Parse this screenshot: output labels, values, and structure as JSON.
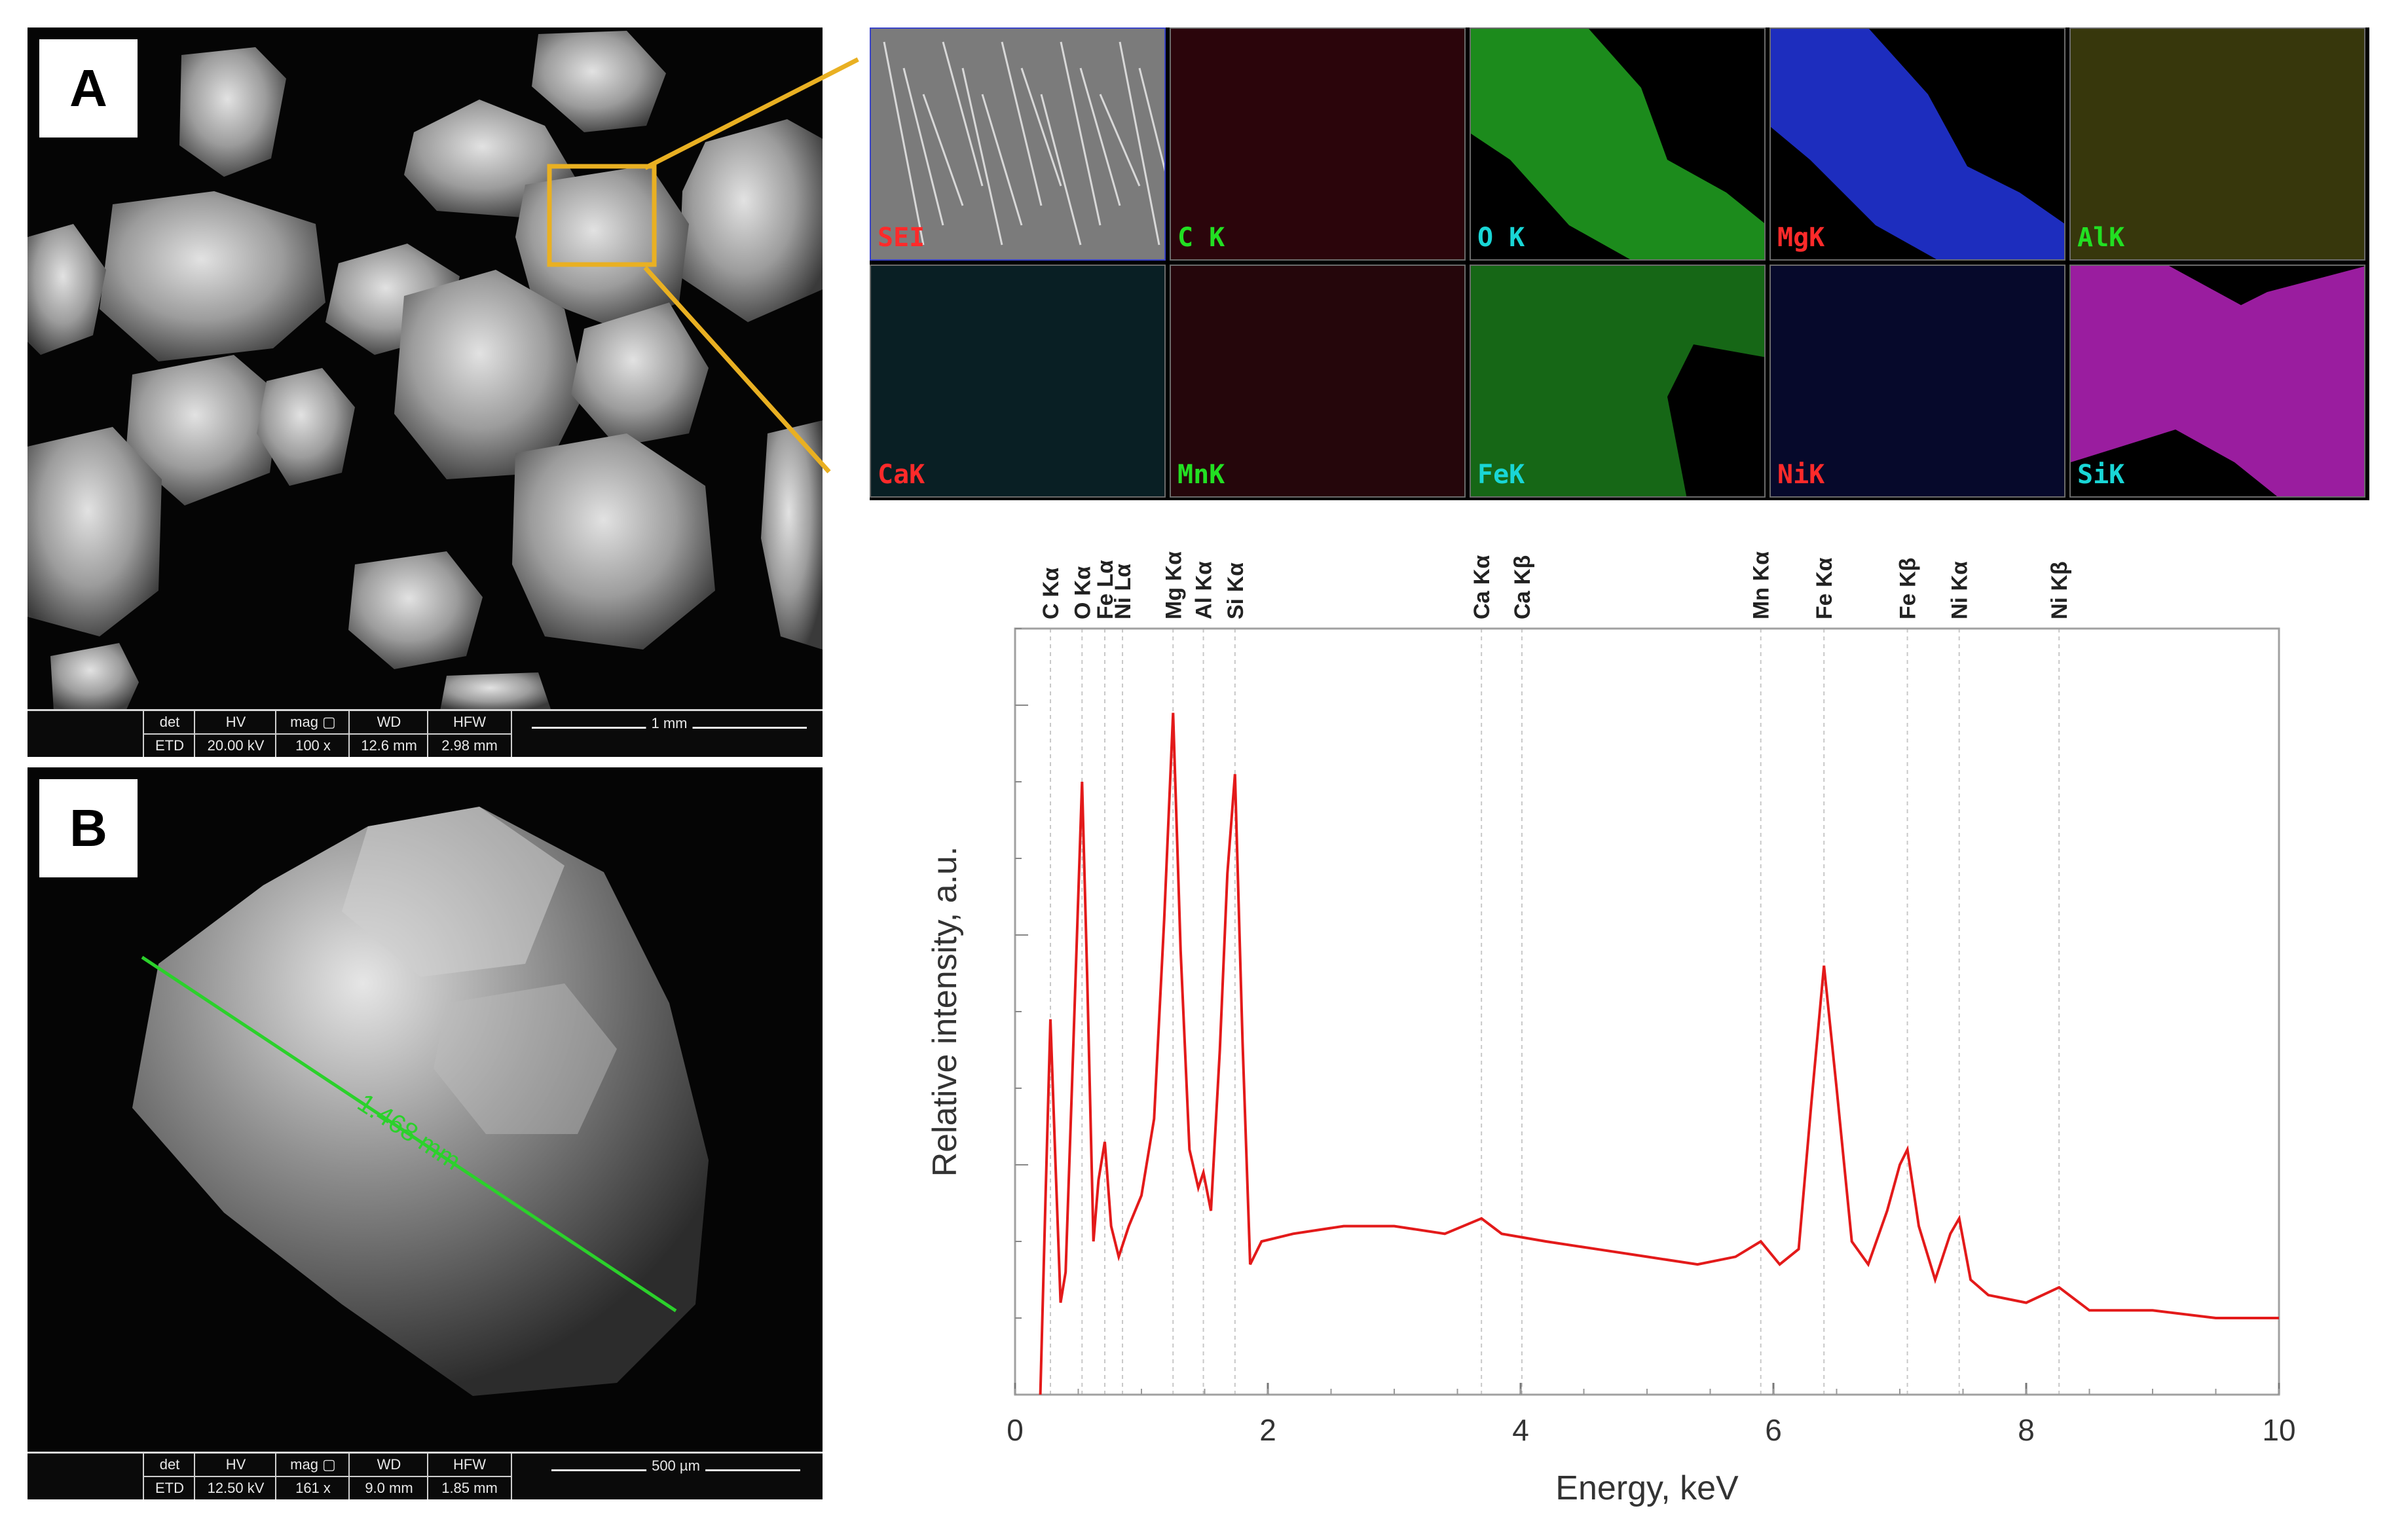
{
  "panels": {
    "a": {
      "letter": "A",
      "info_headers": [
        "det",
        "HV",
        "mag ▢",
        "WD",
        "HFW"
      ],
      "info_values": [
        "ETD",
        "20.00 kV",
        "100 x",
        "12.6 mm",
        "2.98 mm"
      ],
      "scale_label": "1 mm"
    },
    "b": {
      "letter": "B",
      "measurement": "1.468 mm",
      "info_headers": [
        "det",
        "HV",
        "mag ▢",
        "WD",
        "HFW"
      ],
      "info_values": [
        "ETD",
        "12.50 kV",
        "161 x",
        "9.0 mm",
        "1.85 mm"
      ],
      "scale_label": "500 µm"
    }
  },
  "eds_maps": [
    {
      "label": "SEI",
      "label_color": "#ff2a2a",
      "fill": "#888888"
    },
    {
      "label": "C  K",
      "label_color": "#22e022",
      "fill": "#7a0f1f"
    },
    {
      "label": "O  K",
      "label_color": "#19d6d6",
      "fill": "#1f9a1f"
    },
    {
      "label": "MgK",
      "label_color": "#ff2a2a",
      "fill": "#1f2fc8"
    },
    {
      "label": "AlK",
      "label_color": "#22e022",
      "fill": "#7a7a1a"
    },
    {
      "label": "CaK",
      "label_color": "#ff2a2a",
      "fill": "#1a5a66"
    },
    {
      "label": "MnK",
      "label_color": "#22e022",
      "fill": "#6a1020"
    },
    {
      "label": "FeK",
      "label_color": "#19d6d6",
      "fill": "#1e8a1e"
    },
    {
      "label": "NiK",
      "label_color": "#ff2a2a",
      "fill": "#101a7a"
    },
    {
      "label": "SiK",
      "label_color": "#19d6d6",
      "fill": "#a21fa8"
    }
  ],
  "chart_data": {
    "type": "line",
    "xlabel": "Energy, keV",
    "ylabel": "Relative intensity, a.u.",
    "xlim": [
      0,
      10
    ],
    "ylim": [
      0,
      100
    ],
    "xticks": [
      0,
      2,
      4,
      6,
      8,
      10
    ],
    "line_color": "#e31a1a",
    "peak_labels": [
      {
        "text": "C Kα",
        "x": 0.28
      },
      {
        "text": "O Kα",
        "x": 0.53
      },
      {
        "text": "Fe Lα",
        "x": 0.71
      },
      {
        "text": "Ni Lα",
        "x": 0.85
      },
      {
        "text": "Mg Kα",
        "x": 1.25
      },
      {
        "text": "Al Kα",
        "x": 1.49
      },
      {
        "text": "Si Kα",
        "x": 1.74
      },
      {
        "text": "Ca Kα",
        "x": 3.69
      },
      {
        "text": "Ca Kβ",
        "x": 4.01
      },
      {
        "text": "Mn Kα",
        "x": 5.9
      },
      {
        "text": "Fe Kα",
        "x": 6.4
      },
      {
        "text": "Fe Kβ",
        "x": 7.06
      },
      {
        "text": "Ni Kα",
        "x": 7.47
      },
      {
        "text": "Ni Kβ",
        "x": 8.26
      }
    ],
    "x": [
      0.2,
      0.24,
      0.28,
      0.32,
      0.36,
      0.4,
      0.45,
      0.5,
      0.53,
      0.57,
      0.62,
      0.66,
      0.71,
      0.76,
      0.82,
      0.9,
      1.0,
      1.1,
      1.18,
      1.25,
      1.31,
      1.38,
      1.45,
      1.49,
      1.55,
      1.62,
      1.68,
      1.74,
      1.8,
      1.86,
      1.95,
      2.2,
      2.6,
      3.0,
      3.4,
      3.69,
      3.85,
      4.2,
      4.6,
      5.0,
      5.4,
      5.7,
      5.9,
      6.05,
      6.2,
      6.3,
      6.4,
      6.5,
      6.62,
      6.75,
      6.9,
      7.0,
      7.06,
      7.15,
      7.28,
      7.4,
      7.47,
      7.56,
      7.7,
      8.0,
      8.26,
      8.5,
      9.0,
      9.5,
      10.0
    ],
    "y": [
      0,
      25,
      49,
      30,
      12,
      16,
      40,
      65,
      80,
      55,
      20,
      28,
      33,
      22,
      18,
      22,
      26,
      36,
      62,
      89,
      58,
      32,
      27,
      29,
      24,
      45,
      68,
      81,
      46,
      17,
      20,
      21,
      22,
      22,
      21,
      23,
      21,
      20,
      19,
      18,
      17,
      18,
      20,
      17,
      19,
      38,
      56,
      40,
      20,
      17,
      24,
      30,
      32,
      22,
      15,
      21,
      23,
      15,
      13,
      12,
      14,
      11,
      11,
      10,
      10
    ]
  }
}
